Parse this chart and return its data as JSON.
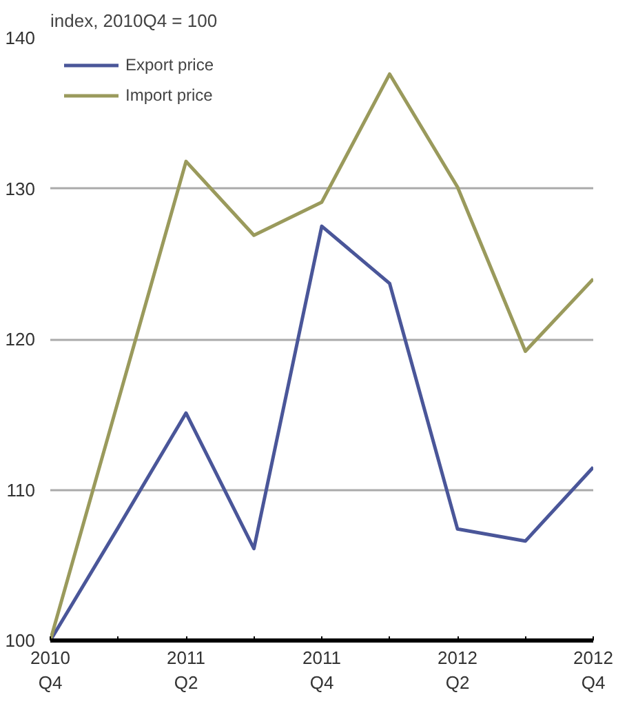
{
  "chart_data": {
    "type": "line",
    "ylabel": "index, 2010Q4 = 100",
    "categories": [
      "2010\nQ4",
      null,
      "2011\nQ2",
      null,
      "2011\nQ4",
      null,
      "2012\nQ2",
      null,
      "2012\nQ4"
    ],
    "series": [
      {
        "name": "Export price",
        "color": "#4a5699",
        "values": [
          100,
          107.5,
          115.1,
          106.1,
          127.5,
          123.7,
          107.4,
          106.6,
          111.5
        ]
      },
      {
        "name": "Import price",
        "color": "#9a9a5c",
        "values": [
          100,
          115.9,
          131.8,
          126.9,
          129.1,
          137.6,
          130.1,
          119.2,
          124.0
        ]
      }
    ],
    "ylim": [
      100,
      140
    ],
    "yticks": [
      100,
      110,
      120,
      130,
      140
    ],
    "grid": "y",
    "legend": "top left",
    "marker": "none",
    "line_style": "solid"
  }
}
